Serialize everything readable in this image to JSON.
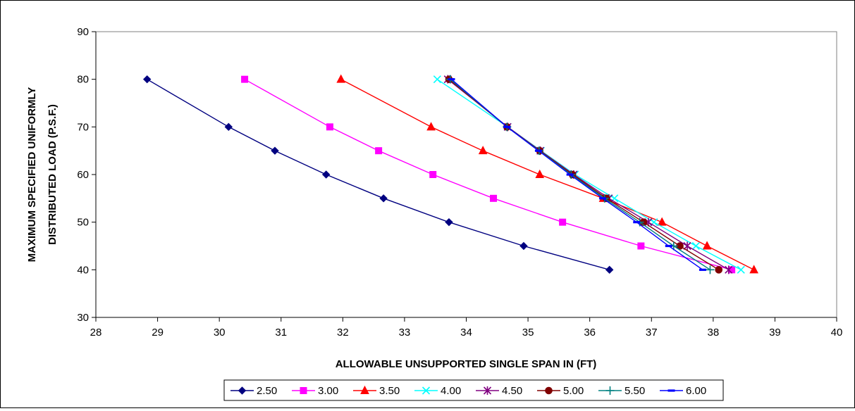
{
  "chart_data": {
    "type": "line",
    "title": "",
    "xlabel": "ALLOWABLE UNSUPPORTED SINGLE SPAN IN (FT)",
    "ylabel_lines": [
      "MAXIMUM SPECIFIED UNIFORMLY",
      "DISTRIBUTED LOAD (P.S.F.)"
    ],
    "xlim": [
      28,
      40
    ],
    "ylim": [
      30,
      90
    ],
    "xticks": [
      28,
      29,
      30,
      31,
      32,
      33,
      34,
      35,
      36,
      37,
      38,
      39,
      40
    ],
    "yticks": [
      30,
      40,
      50,
      60,
      70,
      80,
      90
    ],
    "grid": "none",
    "legend_position": "bottom",
    "y": [
      80,
      70,
      65,
      60,
      55,
      50,
      45,
      40
    ],
    "series": [
      {
        "name": "2.50",
        "color": "#000080",
        "marker": "diamond",
        "x": [
          28.83,
          30.15,
          30.9,
          31.73,
          32.66,
          33.72,
          34.93,
          36.32
        ]
      },
      {
        "name": "3.00",
        "color": "#ff00ff",
        "marker": "square",
        "x": [
          30.41,
          31.79,
          32.58,
          33.46,
          34.44,
          35.56,
          36.83,
          38.3
        ]
      },
      {
        "name": "3.50",
        "color": "#ff0000",
        "marker": "triangle",
        "x": [
          31.97,
          33.43,
          34.27,
          35.19,
          36.22,
          37.17,
          37.9,
          38.66
        ]
      },
      {
        "name": "4.00",
        "color": "#00ffff",
        "marker": "x",
        "x": [
          33.53,
          34.67,
          35.21,
          35.76,
          36.4,
          37.04,
          37.72,
          38.45
        ]
      },
      {
        "name": "4.50",
        "color": "#800080",
        "marker": "star",
        "x": [
          33.7,
          34.67,
          35.2,
          35.74,
          36.31,
          36.95,
          37.58,
          38.25
        ]
      },
      {
        "name": "5.00",
        "color": "#800000",
        "marker": "circle",
        "x": [
          33.72,
          34.66,
          35.19,
          35.72,
          36.27,
          36.87,
          37.46,
          38.09
        ]
      },
      {
        "name": "5.50",
        "color": "#008080",
        "marker": "plus",
        "x": [
          33.74,
          34.66,
          35.18,
          35.7,
          36.24,
          36.81,
          37.36,
          37.95
        ]
      },
      {
        "name": "6.00",
        "color": "#0000ff",
        "marker": "dash",
        "x": [
          33.76,
          34.66,
          35.17,
          35.68,
          36.21,
          36.76,
          37.28,
          37.83
        ]
      }
    ]
  }
}
